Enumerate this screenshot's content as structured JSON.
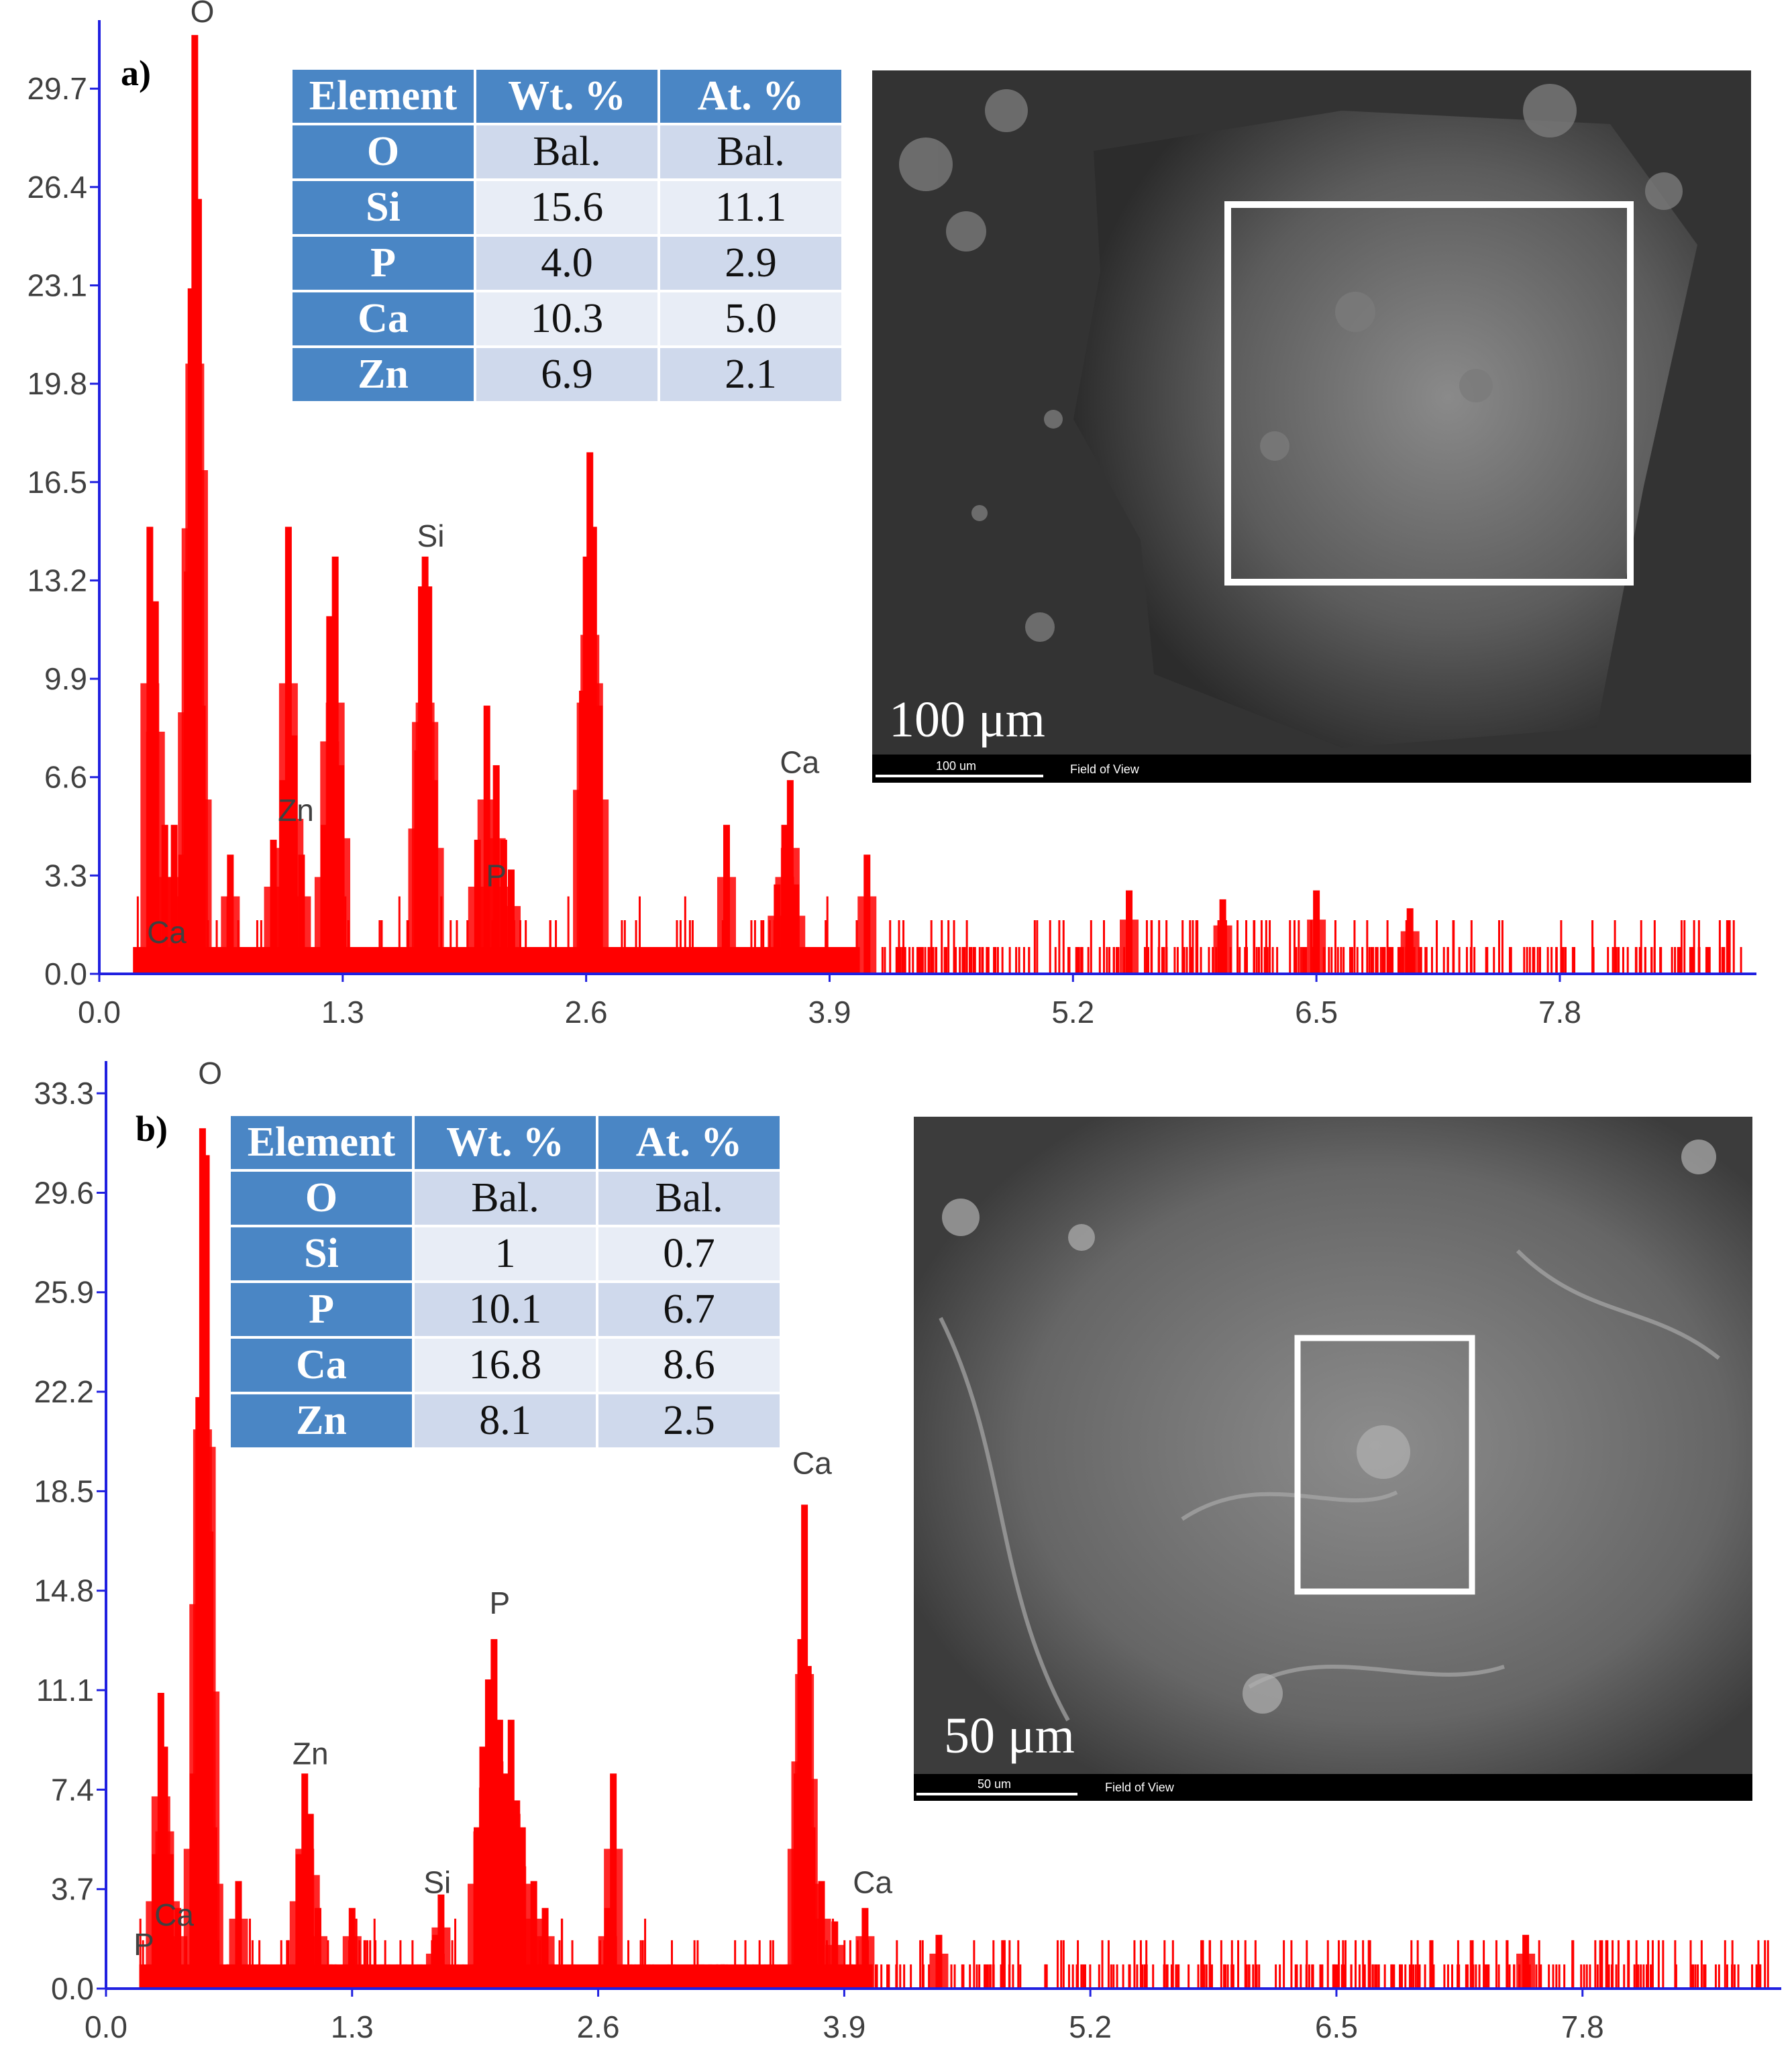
{
  "chart_data": [
    {
      "panel_label": "a)",
      "type": "bar",
      "x_ticks": [
        "0.0",
        "1.3",
        "2.6",
        "3.9",
        "5.2",
        "6.5",
        "7.8"
      ],
      "y_ticks": [
        "0.0",
        "3.3",
        "6.6",
        "9.9",
        "13.2",
        "16.5",
        "19.8",
        "23.1",
        "26.4",
        "29.7"
      ],
      "xlim": [
        0.0,
        8.85
      ],
      "ylim": [
        0.0,
        32.0
      ],
      "peaks": [
        {
          "x": 0.27,
          "y": 15.0
        },
        {
          "x": 0.3,
          "y": 12.5
        },
        {
          "x": 0.35,
          "y": 5.0
        },
        {
          "x": 0.4,
          "y": 5.0
        },
        {
          "x": 0.44,
          "y": 4.0
        },
        {
          "x": 0.47,
          "y": 13.5
        },
        {
          "x": 0.49,
          "y": 23.0
        },
        {
          "x": 0.51,
          "y": 31.5
        },
        {
          "x": 0.53,
          "y": 26.0
        },
        {
          "x": 0.55,
          "y": 9.0
        },
        {
          "x": 0.7,
          "y": 4.0
        },
        {
          "x": 0.93,
          "y": 4.5
        },
        {
          "x": 0.98,
          "y": 6.5
        },
        {
          "x": 1.01,
          "y": 15.0
        },
        {
          "x": 1.04,
          "y": 8.0
        },
        {
          "x": 1.08,
          "y": 4.0
        },
        {
          "x": 1.2,
          "y": 5.0
        },
        {
          "x": 1.23,
          "y": 12.0
        },
        {
          "x": 1.26,
          "y": 14.0
        },
        {
          "x": 1.29,
          "y": 7.0
        },
        {
          "x": 1.7,
          "y": 7.5
        },
        {
          "x": 1.72,
          "y": 13.0
        },
        {
          "x": 1.74,
          "y": 14.0
        },
        {
          "x": 1.76,
          "y": 13.0
        },
        {
          "x": 1.79,
          "y": 6.5
        },
        {
          "x": 2.02,
          "y": 4.5
        },
        {
          "x": 2.07,
          "y": 9.0
        },
        {
          "x": 2.12,
          "y": 7.0
        },
        {
          "x": 2.16,
          "y": 4.5
        },
        {
          "x": 2.2,
          "y": 3.5
        },
        {
          "x": 2.58,
          "y": 9.5
        },
        {
          "x": 2.6,
          "y": 14.0
        },
        {
          "x": 2.62,
          "y": 17.5
        },
        {
          "x": 2.64,
          "y": 15.0
        },
        {
          "x": 2.67,
          "y": 9.0
        },
        {
          "x": 3.35,
          "y": 5.0
        },
        {
          "x": 3.62,
          "y": 3.0
        },
        {
          "x": 3.66,
          "y": 5.0
        },
        {
          "x": 3.69,
          "y": 6.5
        },
        {
          "x": 3.72,
          "y": 3.0
        },
        {
          "x": 4.1,
          "y": 4.0
        },
        {
          "x": 5.5,
          "y": 2.8
        },
        {
          "x": 6.0,
          "y": 2.5
        },
        {
          "x": 6.5,
          "y": 2.8
        },
        {
          "x": 7.0,
          "y": 2.2
        }
      ],
      "element_labels": [
        {
          "text": "O",
          "x": 0.55,
          "y": 31.8
        },
        {
          "text": "Si",
          "x": 1.77,
          "y": 14.2
        },
        {
          "text": "Zn",
          "x": 1.05,
          "y": 5.0
        },
        {
          "text": "P",
          "x": 2.12,
          "y": 2.8
        },
        {
          "text": "Ca",
          "x": 3.74,
          "y": 6.6
        },
        {
          "text": "Ca",
          "x": 0.36,
          "y": 0.9
        }
      ],
      "table": {
        "headers": [
          "Element",
          "Wt. %",
          "At. %"
        ],
        "rows": [
          [
            "O",
            "Bal.",
            "Bal."
          ],
          [
            "Si",
            "15.6",
            "11.1"
          ],
          [
            "P",
            "4.0",
            "2.9"
          ],
          [
            "Ca",
            "10.3",
            "5.0"
          ],
          [
            "Zn",
            "6.9",
            "2.1"
          ]
        ]
      },
      "sem": {
        "scale_label": "100 μm",
        "bar_text": "100 um",
        "fov_text": "Field of View"
      }
    },
    {
      "panel_label": "b)",
      "type": "bar",
      "x_ticks": [
        "0.0",
        "1.3",
        "2.6",
        "3.9",
        "5.2",
        "6.5",
        "7.8"
      ],
      "y_ticks": [
        "0.0",
        "3.7",
        "7.4",
        "11.1",
        "14.8",
        "18.5",
        "22.2",
        "25.9",
        "29.6",
        "33.3"
      ],
      "xlim": [
        0.0,
        8.85
      ],
      "ylim": [
        0.0,
        34.5
      ],
      "peaks": [
        {
          "x": 0.26,
          "y": 5.0
        },
        {
          "x": 0.29,
          "y": 11.0
        },
        {
          "x": 0.31,
          "y": 9.0
        },
        {
          "x": 0.34,
          "y": 5.0
        },
        {
          "x": 0.38,
          "y": 3.0
        },
        {
          "x": 0.46,
          "y": 8.0
        },
        {
          "x": 0.49,
          "y": 22.0
        },
        {
          "x": 0.51,
          "y": 32.0
        },
        {
          "x": 0.53,
          "y": 31.0
        },
        {
          "x": 0.55,
          "y": 17.0
        },
        {
          "x": 0.57,
          "y": 6.0
        },
        {
          "x": 0.7,
          "y": 4.0
        },
        {
          "x": 1.02,
          "y": 5.0
        },
        {
          "x": 1.05,
          "y": 8.0
        },
        {
          "x": 1.08,
          "y": 6.5
        },
        {
          "x": 1.12,
          "y": 3.0
        },
        {
          "x": 1.3,
          "y": 3.0
        },
        {
          "x": 1.74,
          "y": 2.0
        },
        {
          "x": 1.77,
          "y": 3.5
        },
        {
          "x": 1.96,
          "y": 6.0
        },
        {
          "x": 1.99,
          "y": 9.0
        },
        {
          "x": 2.02,
          "y": 11.5
        },
        {
          "x": 2.05,
          "y": 13.0
        },
        {
          "x": 2.08,
          "y": 10.0
        },
        {
          "x": 2.11,
          "y": 8.0
        },
        {
          "x": 2.14,
          "y": 10.0
        },
        {
          "x": 2.17,
          "y": 7.0
        },
        {
          "x": 2.2,
          "y": 6.0
        },
        {
          "x": 2.26,
          "y": 4.0
        },
        {
          "x": 2.32,
          "y": 3.0
        },
        {
          "x": 2.65,
          "y": 3.0
        },
        {
          "x": 2.68,
          "y": 8.0
        },
        {
          "x": 3.65,
          "y": 8.0
        },
        {
          "x": 3.67,
          "y": 13.0
        },
        {
          "x": 3.69,
          "y": 18.0
        },
        {
          "x": 3.71,
          "y": 12.0
        },
        {
          "x": 3.73,
          "y": 6.0
        },
        {
          "x": 3.78,
          "y": 4.0
        },
        {
          "x": 3.85,
          "y": 2.5
        },
        {
          "x": 4.01,
          "y": 3.0
        },
        {
          "x": 4.4,
          "y": 2.0
        },
        {
          "x": 7.5,
          "y": 2.0
        }
      ],
      "element_labels": [
        {
          "text": "O",
          "x": 0.55,
          "y": 33.5
        },
        {
          "text": "P",
          "x": 2.08,
          "y": 13.8
        },
        {
          "text": "Ca",
          "x": 3.73,
          "y": 19.0
        },
        {
          "text": "Zn",
          "x": 1.08,
          "y": 8.2
        },
        {
          "text": "Si",
          "x": 1.75,
          "y": 3.4
        },
        {
          "text": "Ca",
          "x": 4.05,
          "y": 3.4
        },
        {
          "text": "Ca",
          "x": 0.36,
          "y": 2.2
        },
        {
          "text": "P",
          "x": 0.2,
          "y": 1.1
        }
      ],
      "table": {
        "headers": [
          "Element",
          "Wt. %",
          "At. %"
        ],
        "rows": [
          [
            "O",
            "Bal.",
            "Bal."
          ],
          [
            "Si",
            "1",
            "0.7"
          ],
          [
            "P",
            "10.1",
            "6.7"
          ],
          [
            "Ca",
            "16.8",
            "8.6"
          ],
          [
            "Zn",
            "8.1",
            "2.5"
          ]
        ]
      },
      "sem": {
        "scale_label": "50 μm",
        "bar_text": "50 um",
        "fov_text": "Field of View"
      }
    }
  ],
  "colors": {
    "spectrum": "#ff0000",
    "axis": "#2020e0",
    "header": "#4a86c5"
  }
}
